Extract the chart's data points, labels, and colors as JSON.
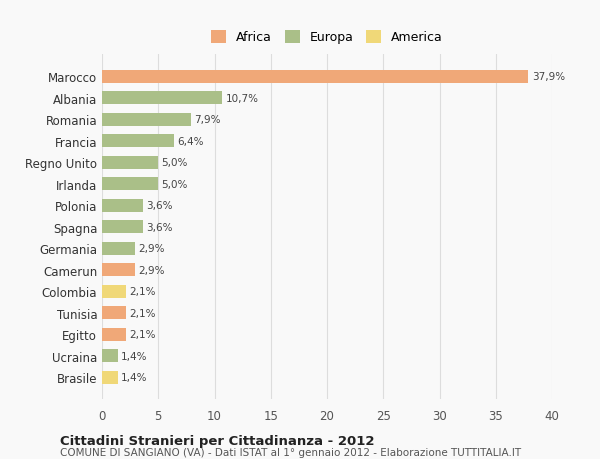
{
  "categories": [
    "Brasile",
    "Ucraina",
    "Egitto",
    "Tunisia",
    "Colombia",
    "Camerun",
    "Germania",
    "Spagna",
    "Polonia",
    "Irlanda",
    "Regno Unito",
    "Francia",
    "Romania",
    "Albania",
    "Marocco"
  ],
  "values": [
    1.4,
    1.4,
    2.1,
    2.1,
    2.1,
    2.9,
    2.9,
    3.6,
    3.6,
    5.0,
    5.0,
    6.4,
    7.9,
    10.7,
    37.9
  ],
  "labels": [
    "1,4%",
    "1,4%",
    "2,1%",
    "2,1%",
    "2,1%",
    "2,9%",
    "2,9%",
    "3,6%",
    "3,6%",
    "5,0%",
    "5,0%",
    "6,4%",
    "7,9%",
    "10,7%",
    "37,9%"
  ],
  "continents": [
    "America",
    "Europa",
    "Africa",
    "Africa",
    "America",
    "Africa",
    "Europa",
    "Europa",
    "Europa",
    "Europa",
    "Europa",
    "Europa",
    "Europa",
    "Europa",
    "Africa"
  ],
  "colors": {
    "Africa": "#F0A878",
    "Europa": "#AABF88",
    "America": "#F0D878"
  },
  "legend": [
    "Africa",
    "Europa",
    "America"
  ],
  "legend_colors": [
    "#F0A878",
    "#AABF88",
    "#F0D878"
  ],
  "title": "Cittadini Stranieri per Cittadinanza - 2012",
  "subtitle": "COMUNE DI SANGIANO (VA) - Dati ISTAT al 1° gennaio 2012 - Elaborazione TUTTITALIA.IT",
  "xlim": [
    0,
    40
  ],
  "xticks": [
    0,
    5,
    10,
    15,
    20,
    25,
    30,
    35,
    40
  ],
  "background_color": "#f9f9f9",
  "grid_color": "#dddddd",
  "bar_height": 0.6
}
